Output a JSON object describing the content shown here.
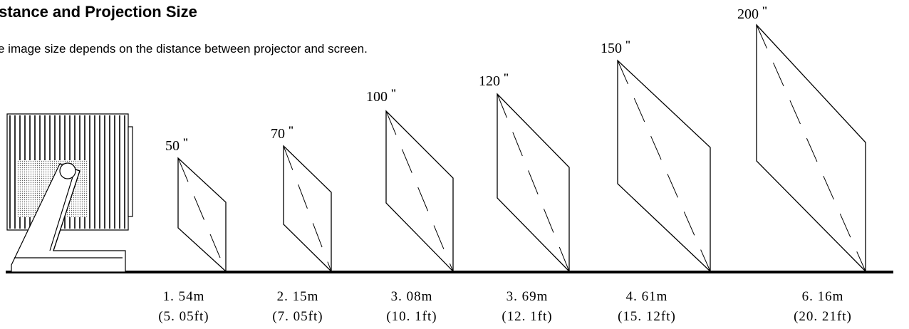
{
  "title": "istance and Projection Size",
  "subtitle": "e image size depends on the distance between projector and screen.",
  "screens": [
    {
      "size": "50",
      "mark": "\"",
      "distance": "1. 54m",
      "distance_ft": "(5. 05ft)"
    },
    {
      "size": "70",
      "mark": "\"",
      "distance": "2. 15m",
      "distance_ft": "(7. 05ft)"
    },
    {
      "size": "100",
      "mark": "\"",
      "distance": "3. 08m",
      "distance_ft": "(10. 1ft)"
    },
    {
      "size": "120",
      "mark": "\"",
      "distance": "3. 69m",
      "distance_ft": "(12. 1ft)"
    },
    {
      "size": "150",
      "mark": "\"",
      "distance": "4. 61m",
      "distance_ft": "(15. 12ft)"
    },
    {
      "size": "200",
      "mark": "\"",
      "distance": "6. 16m",
      "distance_ft": "(20. 21ft)"
    }
  ]
}
